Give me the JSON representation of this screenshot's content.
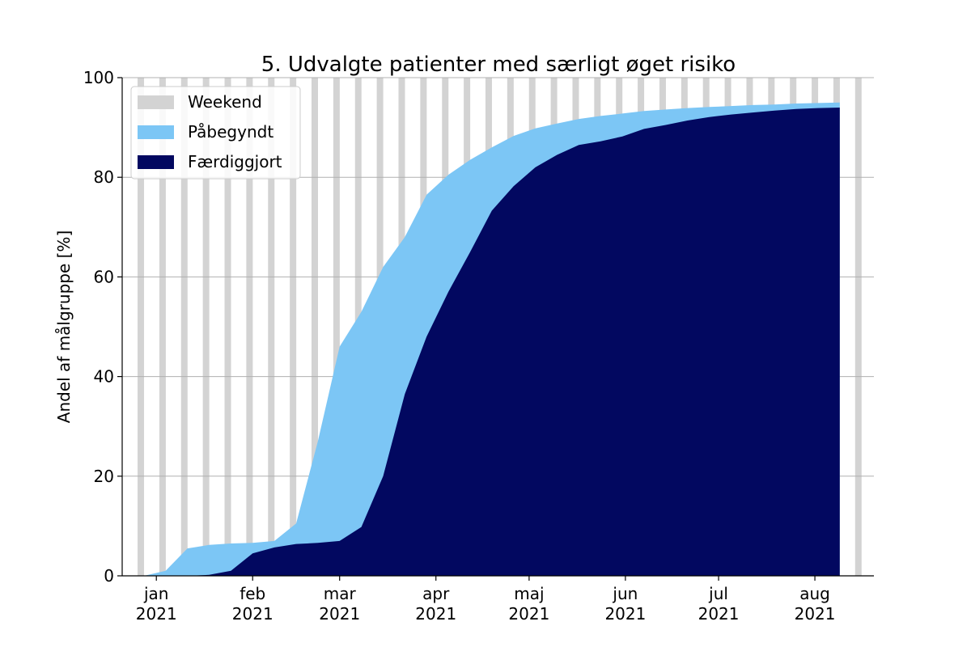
{
  "chart_data": {
    "type": "area",
    "title": "5. Udvalgte patienter med særligt øget risiko",
    "xlabel": "",
    "ylabel": "Andel af målgruppe [%]",
    "ylim": [
      0,
      100
    ],
    "yticks": [
      0,
      20,
      40,
      60,
      80,
      100
    ],
    "xlim": [
      "2020-12-21",
      "2021-08-20"
    ],
    "xticks": [
      {
        "date": "2021-01-01",
        "label": [
          "jan",
          "2021"
        ]
      },
      {
        "date": "2021-02-01",
        "label": [
          "feb",
          "2021"
        ]
      },
      {
        "date": "2021-03-01",
        "label": [
          "mar",
          "2021"
        ]
      },
      {
        "date": "2021-04-01",
        "label": [
          "apr",
          "2021"
        ]
      },
      {
        "date": "2021-05-01",
        "label": [
          "maj",
          "2021"
        ]
      },
      {
        "date": "2021-06-01",
        "label": [
          "jun",
          "2021"
        ]
      },
      {
        "date": "2021-07-01",
        "label": [
          "jul",
          "2021"
        ]
      },
      {
        "date": "2021-08-01",
        "label": [
          "aug",
          "2021"
        ]
      }
    ],
    "grid": "y",
    "legend_position": "top-left",
    "weekends": [
      "2020-12-27",
      "2021-01-03",
      "2021-01-10",
      "2021-01-17",
      "2021-01-24",
      "2021-01-31",
      "2021-02-07",
      "2021-02-14",
      "2021-02-21",
      "2021-02-28",
      "2021-03-07",
      "2021-03-14",
      "2021-03-21",
      "2021-03-28",
      "2021-04-04",
      "2021-04-11",
      "2021-04-18",
      "2021-04-25",
      "2021-05-02",
      "2021-05-09",
      "2021-05-16",
      "2021-05-23",
      "2021-05-30",
      "2021-06-06",
      "2021-06-13",
      "2021-06-20",
      "2021-06-27",
      "2021-07-04",
      "2021-07-11",
      "2021-07-18",
      "2021-07-25",
      "2021-08-01",
      "2021-08-08",
      "2021-08-15"
    ],
    "series": [
      {
        "name": "Påbegyndt",
        "color": "#7cc6f5",
        "points": [
          [
            "2020-12-28",
            0
          ],
          [
            "2021-01-04",
            1.0
          ],
          [
            "2021-01-11",
            5.5
          ],
          [
            "2021-01-18",
            6.2
          ],
          [
            "2021-01-25",
            6.5
          ],
          [
            "2021-02-01",
            6.6
          ],
          [
            "2021-02-08",
            7.0
          ],
          [
            "2021-02-15",
            10.5
          ],
          [
            "2021-02-22",
            27.0
          ],
          [
            "2021-03-01",
            46.0
          ],
          [
            "2021-03-08",
            53.0
          ],
          [
            "2021-03-15",
            62.0
          ],
          [
            "2021-03-22",
            68.0
          ],
          [
            "2021-03-29",
            76.5
          ],
          [
            "2021-04-05",
            80.5
          ],
          [
            "2021-04-12",
            83.5
          ],
          [
            "2021-04-19",
            86.0
          ],
          [
            "2021-04-26",
            88.3
          ],
          [
            "2021-05-03",
            89.8
          ],
          [
            "2021-05-10",
            90.8
          ],
          [
            "2021-05-17",
            91.7
          ],
          [
            "2021-05-24",
            92.3
          ],
          [
            "2021-05-31",
            92.8
          ],
          [
            "2021-06-07",
            93.3
          ],
          [
            "2021-06-14",
            93.6
          ],
          [
            "2021-06-21",
            93.9
          ],
          [
            "2021-06-28",
            94.1
          ],
          [
            "2021-07-05",
            94.3
          ],
          [
            "2021-07-12",
            94.5
          ],
          [
            "2021-07-19",
            94.6
          ],
          [
            "2021-07-26",
            94.8
          ],
          [
            "2021-08-02",
            94.9
          ],
          [
            "2021-08-09",
            95.0
          ]
        ]
      },
      {
        "name": "Færdiggjort",
        "color": "#020860",
        "points": [
          [
            "2020-12-28",
            0
          ],
          [
            "2021-01-04",
            0
          ],
          [
            "2021-01-11",
            0
          ],
          [
            "2021-01-18",
            0.2
          ],
          [
            "2021-01-25",
            1.0
          ],
          [
            "2021-02-01",
            4.5
          ],
          [
            "2021-02-08",
            5.7
          ],
          [
            "2021-02-15",
            6.4
          ],
          [
            "2021-02-22",
            6.6
          ],
          [
            "2021-03-01",
            7.0
          ],
          [
            "2021-03-08",
            9.8
          ],
          [
            "2021-03-15",
            20.0
          ],
          [
            "2021-03-22",
            36.5
          ],
          [
            "2021-03-29",
            48.0
          ],
          [
            "2021-04-05",
            57.0
          ],
          [
            "2021-04-12",
            65.0
          ],
          [
            "2021-04-19",
            73.3
          ],
          [
            "2021-04-26",
            78.2
          ],
          [
            "2021-05-03",
            82.0
          ],
          [
            "2021-05-10",
            84.5
          ],
          [
            "2021-05-17",
            86.5
          ],
          [
            "2021-05-24",
            87.2
          ],
          [
            "2021-05-31",
            88.2
          ],
          [
            "2021-06-07",
            89.7
          ],
          [
            "2021-06-14",
            90.5
          ],
          [
            "2021-06-21",
            91.4
          ],
          [
            "2021-06-28",
            92.1
          ],
          [
            "2021-07-05",
            92.6
          ],
          [
            "2021-07-12",
            93.0
          ],
          [
            "2021-07-19",
            93.4
          ],
          [
            "2021-07-26",
            93.7
          ],
          [
            "2021-08-02",
            93.9
          ],
          [
            "2021-08-09",
            94.0
          ]
        ]
      }
    ],
    "legend": [
      {
        "label": "Weekend",
        "color": "#d3d3d3"
      },
      {
        "label": "Påbegyndt",
        "color": "#7cc6f5"
      },
      {
        "label": "Færdiggjort",
        "color": "#020860"
      }
    ],
    "colors": {
      "weekend": "#d3d3d3",
      "grid": "#b0b0b0",
      "axis": "#000000"
    }
  }
}
